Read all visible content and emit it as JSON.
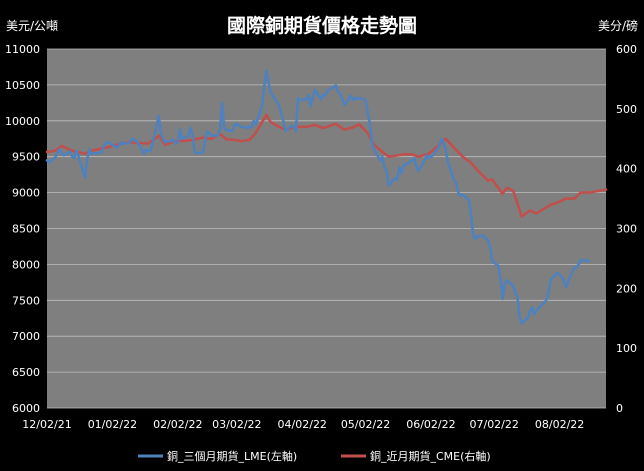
{
  "chart_data": {
    "type": "line",
    "title": "國際銅期貨價格走勢圖",
    "left_unit": "美元/公噸",
    "right_unit": "美分/磅",
    "x_ticks": [
      "12/02/21",
      "01/02/22",
      "02/02/22",
      "03/02/22",
      "04/02/22",
      "05/02/22",
      "06/02/22",
      "07/02/22",
      "08/02/22"
    ],
    "x_start": "12/02/21",
    "x_end": "08/24/22",
    "y_left": {
      "min": 6000,
      "max": 11000,
      "step": 500
    },
    "y_right": {
      "min": 0,
      "max": 600,
      "step": 100
    },
    "grid": true,
    "legend_position": "bottom",
    "colors": {
      "background": "#000000",
      "plot_area": "#7f7f7f",
      "grid": "#bfbfbf"
    },
    "series": [
      {
        "name": "銅_三個月期貨_LME(左軸)",
        "axis": "left",
        "color": "#4f81bd",
        "points": [
          [
            "12/02/21",
            9450
          ],
          [
            "12/03/21",
            9420
          ],
          [
            "12/06/21",
            9490
          ],
          [
            "12/07/21",
            9560
          ],
          [
            "12/08/21",
            9600
          ],
          [
            "12/09/21",
            9540
          ],
          [
            "12/10/21",
            9520
          ],
          [
            "12/13/21",
            9570
          ],
          [
            "12/14/21",
            9500
          ],
          [
            "12/15/21",
            9480
          ],
          [
            "12/16/21",
            9580
          ],
          [
            "12/17/21",
            9500
          ],
          [
            "12/20/21",
            9210
          ],
          [
            "12/21/21",
            9450
          ],
          [
            "12/22/21",
            9600
          ],
          [
            "12/23/21",
            9540
          ],
          [
            "12/28/21",
            9560
          ],
          [
            "12/29/21",
            9650
          ],
          [
            "12/30/21",
            9690
          ],
          [
            "12/31/21",
            9700
          ],
          [
            "01/04/22",
            9630
          ],
          [
            "01/05/22",
            9650
          ],
          [
            "01/06/22",
            9700
          ],
          [
            "01/07/22",
            9680
          ],
          [
            "01/10/22",
            9690
          ],
          [
            "01/11/22",
            9740
          ],
          [
            "01/12/22",
            9750
          ],
          [
            "01/13/22",
            9720
          ],
          [
            "01/14/22",
            9700
          ],
          [
            "01/17/22",
            9540
          ],
          [
            "01/18/22",
            9600
          ],
          [
            "01/19/22",
            9580
          ],
          [
            "01/20/22",
            9580
          ],
          [
            "01/21/22",
            9680
          ],
          [
            "01/24/22",
            10070
          ],
          [
            "01/25/22",
            9830
          ],
          [
            "01/26/22",
            9750
          ],
          [
            "01/27/22",
            9700
          ],
          [
            "01/28/22",
            9710
          ],
          [
            "01/31/22",
            9730
          ],
          [
            "02/01/22",
            9680
          ],
          [
            "02/02/22",
            9700
          ],
          [
            "02/03/22",
            9880
          ],
          [
            "02/04/22",
            9750
          ],
          [
            "02/07/22",
            9790
          ],
          [
            "02/08/22",
            9900
          ],
          [
            "02/09/22",
            9800
          ],
          [
            "02/10/22",
            9560
          ],
          [
            "02/11/22",
            9550
          ],
          [
            "02/14/22",
            9560
          ],
          [
            "02/15/22",
            9750
          ],
          [
            "02/16/22",
            9850
          ],
          [
            "02/17/22",
            9830
          ],
          [
            "02/18/22",
            9790
          ],
          [
            "02/21/22",
            9800
          ],
          [
            "02/22/22",
            9870
          ],
          [
            "02/23/22",
            10250
          ],
          [
            "02/24/22",
            9900
          ],
          [
            "02/25/22",
            9870
          ],
          [
            "02/28/22",
            9860
          ],
          [
            "03/01/22",
            9950
          ],
          [
            "03/02/22",
            9960
          ],
          [
            "03/03/22",
            9930
          ],
          [
            "03/04/22",
            9920
          ],
          [
            "03/07/22",
            9900
          ],
          [
            "03/08/22",
            9920
          ],
          [
            "03/09/22",
            9910
          ],
          [
            "03/10/22",
            10000
          ],
          [
            "03/11/22",
            9950
          ],
          [
            "03/14/22",
            10210
          ],
          [
            "03/15/22",
            10480
          ],
          [
            "03/16/22",
            10700
          ],
          [
            "03/17/22",
            10530
          ],
          [
            "03/18/22",
            10400
          ],
          [
            "03/21/22",
            10260
          ],
          [
            "03/22/22",
            10220
          ],
          [
            "03/23/22",
            10100
          ],
          [
            "03/24/22",
            10000
          ],
          [
            "03/25/22",
            9860
          ],
          [
            "03/28/22",
            9930
          ],
          [
            "03/29/22",
            9920
          ],
          [
            "03/30/22",
            9850
          ],
          [
            "03/31/22",
            10310
          ],
          [
            "04/01/22",
            10290
          ],
          [
            "04/04/22",
            10300
          ],
          [
            "04/05/22",
            10360
          ],
          [
            "04/06/22",
            10200
          ],
          [
            "04/07/22",
            10320
          ],
          [
            "04/08/22",
            10430
          ],
          [
            "04/11/22",
            10300
          ],
          [
            "04/12/22",
            10370
          ],
          [
            "04/13/22",
            10350
          ],
          [
            "04/14/22",
            10420
          ],
          [
            "04/18/22",
            10490
          ],
          [
            "04/19/22",
            10400
          ],
          [
            "04/20/22",
            10380
          ],
          [
            "04/21/22",
            10300
          ],
          [
            "04/22/22",
            10220
          ],
          [
            "04/25/22",
            10350
          ],
          [
            "04/26/22",
            10290
          ],
          [
            "04/27/22",
            10320
          ],
          [
            "04/28/22",
            10300
          ],
          [
            "04/29/22",
            10320
          ],
          [
            "05/02/22",
            10290
          ],
          [
            "05/03/22",
            10120
          ],
          [
            "05/04/22",
            9980
          ],
          [
            "05/05/22",
            9700
          ],
          [
            "05/06/22",
            9600
          ],
          [
            "05/09/22",
            9450
          ],
          [
            "05/10/22",
            9500
          ],
          [
            "05/11/22",
            9350
          ],
          [
            "05/12/22",
            9300
          ],
          [
            "05/13/22",
            9100
          ],
          [
            "05/16/22",
            9200
          ],
          [
            "05/17/22",
            9180
          ],
          [
            "05/18/22",
            9350
          ],
          [
            "05/19/22",
            9270
          ],
          [
            "05/20/22",
            9380
          ],
          [
            "05/23/22",
            9420
          ],
          [
            "05/24/22",
            9450
          ],
          [
            "05/25/22",
            9480
          ],
          [
            "05/26/22",
            9380
          ],
          [
            "05/27/22",
            9300
          ],
          [
            "05/30/22",
            9450
          ],
          [
            "05/31/22",
            9520
          ],
          [
            "06/01/22",
            9480
          ],
          [
            "06/02/22",
            9500
          ],
          [
            "06/03/22",
            9520
          ],
          [
            "06/06/22",
            9650
          ],
          [
            "06/07/22",
            9750
          ],
          [
            "06/08/22",
            9700
          ],
          [
            "06/09/22",
            9600
          ],
          [
            "06/10/22",
            9430
          ],
          [
            "06/13/22",
            9170
          ],
          [
            "06/14/22",
            9130
          ],
          [
            "06/15/22",
            9000
          ],
          [
            "06/16/22",
            8960
          ],
          [
            "06/17/22",
            8970
          ],
          [
            "06/20/22",
            8900
          ],
          [
            "06/21/22",
            8700
          ],
          [
            "06/22/22",
            8420
          ],
          [
            "06/23/22",
            8350
          ],
          [
            "06/24/22",
            8390
          ],
          [
            "06/27/22",
            8400
          ],
          [
            "06/28/22",
            8360
          ],
          [
            "06/29/22",
            8340
          ],
          [
            "06/30/22",
            8250
          ],
          [
            "07/01/22",
            8050
          ],
          [
            "07/04/22",
            7980
          ],
          [
            "07/05/22",
            7800
          ],
          [
            "07/06/22",
            7520
          ],
          [
            "07/07/22",
            7730
          ],
          [
            "07/08/22",
            7780
          ],
          [
            "07/11/22",
            7700
          ],
          [
            "07/12/22",
            7600
          ],
          [
            "07/13/22",
            7550
          ],
          [
            "07/14/22",
            7280
          ],
          [
            "07/15/22",
            7180
          ],
          [
            "07/18/22",
            7260
          ],
          [
            "07/19/22",
            7350
          ],
          [
            "07/20/22",
            7400
          ],
          [
            "07/21/22",
            7300
          ],
          [
            "07/22/22",
            7360
          ],
          [
            "07/25/22",
            7450
          ],
          [
            "07/26/22",
            7470
          ],
          [
            "07/27/22",
            7520
          ],
          [
            "07/28/22",
            7650
          ],
          [
            "07/29/22",
            7800
          ],
          [
            "08/01/22",
            7880
          ],
          [
            "08/02/22",
            7860
          ],
          [
            "08/03/22",
            7820
          ],
          [
            "08/04/22",
            7780
          ],
          [
            "08/05/22",
            7680
          ],
          [
            "08/08/22",
            7900
          ],
          [
            "08/09/22",
            7950
          ],
          [
            "08/10/22",
            7960
          ],
          [
            "08/11/22",
            8000
          ],
          [
            "08/12/22",
            8060
          ],
          [
            "08/15/22",
            8050
          ],
          [
            "08/16/22",
            8050
          ]
        ]
      },
      {
        "name": "銅_近月期貨_CME(右軸)",
        "axis": "right",
        "color": "#c0504d",
        "points": [
          [
            "12/02/21",
            428
          ],
          [
            "12/06/21",
            430
          ],
          [
            "12/09/21",
            438
          ],
          [
            "12/13/21",
            431
          ],
          [
            "12/16/21",
            428
          ],
          [
            "12/20/21",
            425
          ],
          [
            "12/23/21",
            430
          ],
          [
            "12/30/21",
            435
          ],
          [
            "01/04/22",
            440
          ],
          [
            "01/10/22",
            444
          ],
          [
            "01/14/22",
            443
          ],
          [
            "01/19/22",
            442
          ],
          [
            "01/24/22",
            455
          ],
          [
            "01/27/22",
            440
          ],
          [
            "02/01/22",
            446
          ],
          [
            "02/04/22",
            446
          ],
          [
            "02/09/22",
            448
          ],
          [
            "02/14/22",
            452
          ],
          [
            "02/18/22",
            450
          ],
          [
            "02/22/22",
            458
          ],
          [
            "02/25/22",
            449
          ],
          [
            "03/01/22",
            448
          ],
          [
            "03/04/22",
            446
          ],
          [
            "03/08/22",
            448
          ],
          [
            "03/11/22",
            460
          ],
          [
            "03/16/22",
            490
          ],
          [
            "03/18/22",
            478
          ],
          [
            "03/22/22",
            470
          ],
          [
            "03/25/22",
            465
          ],
          [
            "03/30/22",
            470
          ],
          [
            "04/04/22",
            470
          ],
          [
            "04/08/22",
            473
          ],
          [
            "04/12/22",
            468
          ],
          [
            "04/18/22",
            475
          ],
          [
            "04/22/22",
            465
          ],
          [
            "04/26/22",
            469
          ],
          [
            "04/29/22",
            474
          ],
          [
            "05/03/22",
            460
          ],
          [
            "05/06/22",
            440
          ],
          [
            "05/10/22",
            428
          ],
          [
            "05/13/22",
            420
          ],
          [
            "05/17/22",
            422
          ],
          [
            "05/20/22",
            424
          ],
          [
            "05/24/22",
            424
          ],
          [
            "05/27/22",
            420
          ],
          [
            "06/01/22",
            425
          ],
          [
            "06/06/22",
            440
          ],
          [
            "06/09/22",
            450
          ],
          [
            "06/13/22",
            435
          ],
          [
            "06/17/22",
            420
          ],
          [
            "06/21/22",
            410
          ],
          [
            "06/24/22",
            398
          ],
          [
            "06/29/22",
            380
          ],
          [
            "07/01/22",
            382
          ],
          [
            "07/06/22",
            358
          ],
          [
            "07/08/22",
            368
          ],
          [
            "07/11/22",
            363
          ],
          [
            "07/14/22",
            332
          ],
          [
            "07/15/22",
            320
          ],
          [
            "07/19/22",
            330
          ],
          [
            "07/22/22",
            325
          ],
          [
            "07/26/22",
            334
          ],
          [
            "07/29/22",
            340
          ],
          [
            "08/02/22",
            345
          ],
          [
            "08/05/22",
            350
          ],
          [
            "08/09/22",
            350
          ],
          [
            "08/12/22",
            360
          ],
          [
            "08/16/22",
            360
          ],
          [
            "08/24/22",
            365
          ]
        ]
      }
    ]
  }
}
